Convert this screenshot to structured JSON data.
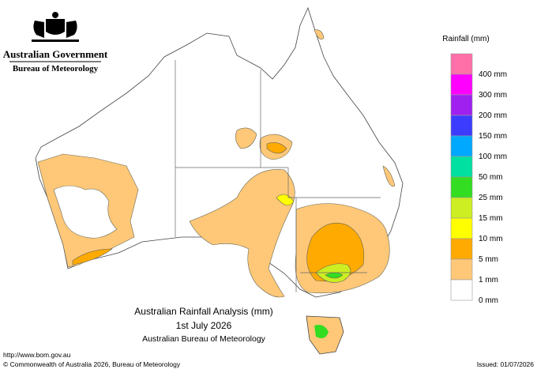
{
  "header": {
    "government": "Australian Government",
    "bureau": "Bureau of Meteorology"
  },
  "legend": {
    "title": "Rainfall (mm)",
    "items": [
      {
        "label": "400 mm",
        "color": "#ff6fa8"
      },
      {
        "label": "300 mm",
        "color": "#ff00ff"
      },
      {
        "label": "200 mm",
        "color": "#a020f0"
      },
      {
        "label": "150 mm",
        "color": "#3c3cff"
      },
      {
        "label": "100 mm",
        "color": "#00a8ff"
      },
      {
        "label": "50 mm",
        "color": "#00e0a0"
      },
      {
        "label": "25 mm",
        "color": "#33dd22"
      },
      {
        "label": "15 mm",
        "color": "#ccee22"
      },
      {
        "label": "10 mm",
        "color": "#ffff00"
      },
      {
        "label": "5 mm",
        "color": "#ffaa00"
      },
      {
        "label": "1 mm",
        "color": "#ffc878"
      },
      {
        "label": "0 mm",
        "color": "#ffffff"
      }
    ]
  },
  "title": {
    "line1": "Australian Rainfall Analysis (mm)",
    "line2": "1st July 2026",
    "line3": "Australian Bureau of Meteorology"
  },
  "footer": {
    "url": "http://www.bom.gov.au",
    "copyright": "© Commonwealth of Australia 2026, Bureau of Meteorology",
    "issued": "Issued: 01/07/2026"
  }
}
